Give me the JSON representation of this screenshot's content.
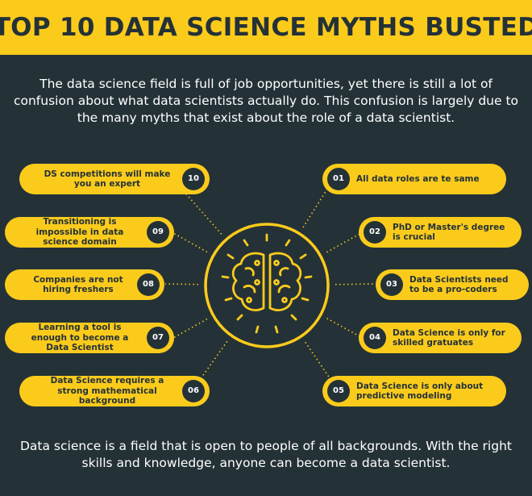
{
  "title": "TOP 10 DATA SCIENCE MYTHS BUSTED",
  "intro": "The data science field is full of job opportunities, yet there is still a lot of confusion about what data scientists actually do. This confusion is largely due to the many myths that exist about the role of a data scientist.",
  "outro": "Data science is a field that is open to people of all backgrounds. With the right skills and knowledge, anyone can become a data scientist.",
  "center_icon": "brain-icon",
  "colors": {
    "background": "#243237",
    "accent": "#FBCB1C",
    "text": "#FFFFFF"
  },
  "myths": [
    {
      "num": "01",
      "text": "All data roles are te same"
    },
    {
      "num": "02",
      "text": "PhD or Master's degree is crucial"
    },
    {
      "num": "03",
      "text": "Data Scientists need to be a pro-coders"
    },
    {
      "num": "04",
      "text": "Data Science is only for skilled gratuates"
    },
    {
      "num": "05",
      "text": "Data Science is only about predictive modeling"
    },
    {
      "num": "06",
      "text": "Data Science requires a strong mathematical background"
    },
    {
      "num": "07",
      "text": "Learning a tool is enough to become a Data Scientist"
    },
    {
      "num": "08",
      "text": "Companies are not hiring freshers"
    },
    {
      "num": "09",
      "text": "Transitioning is impossible in data science domain"
    },
    {
      "num": "10",
      "text": "DS competitions will make you an expert"
    }
  ]
}
